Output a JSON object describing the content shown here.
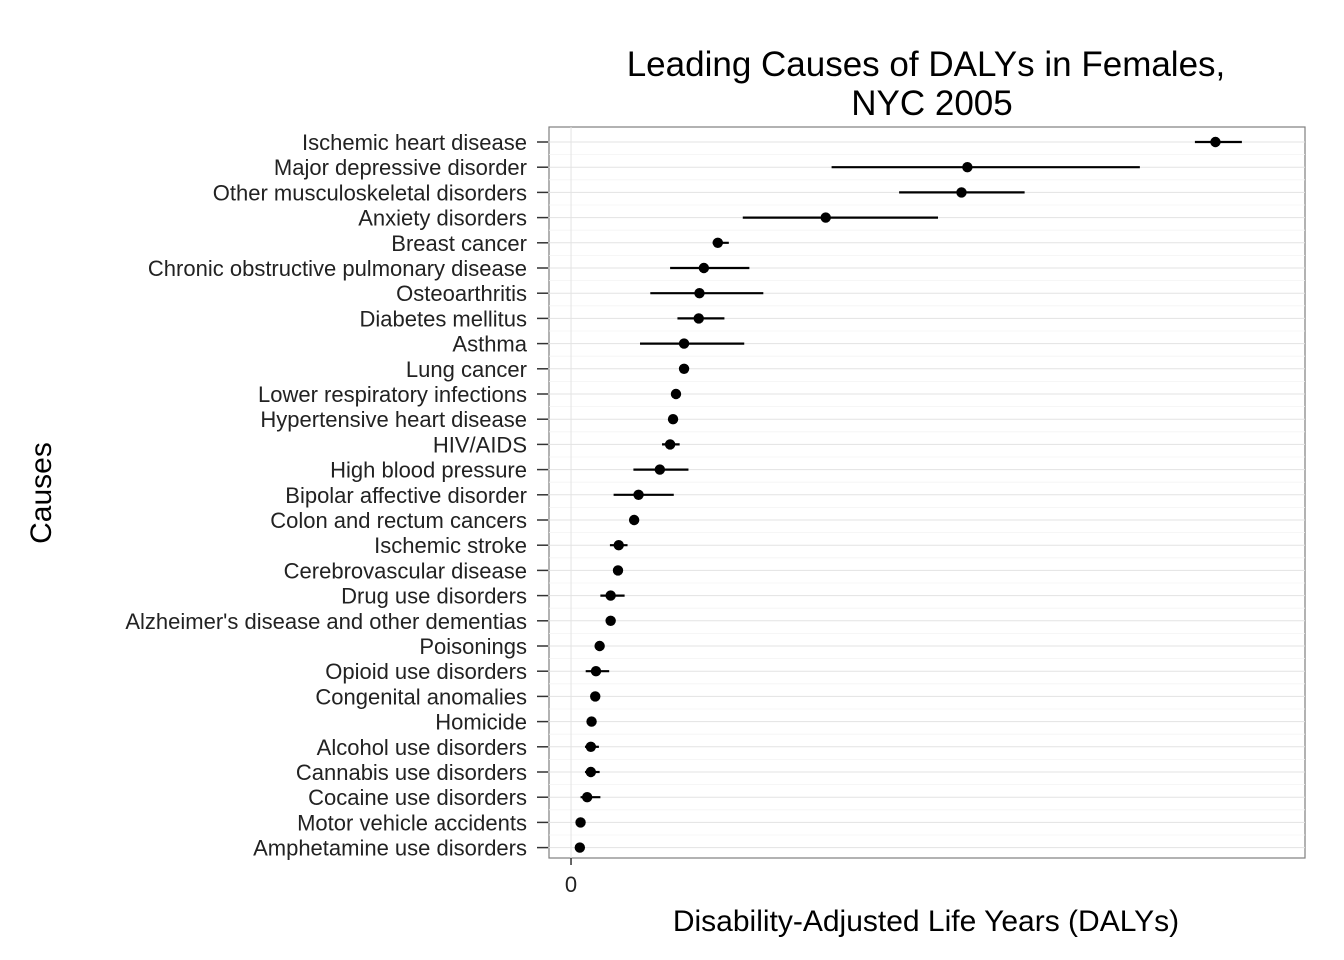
{
  "chart_data": {
    "type": "scatter",
    "title": "Leading Causes of DALYs in Females,",
    "subtitle": "NYC 2005",
    "xlabel": "Disability-Adjusted Life Years (DALYs)",
    "ylabel": "Causes",
    "x_tick_labels": [
      {
        "value": 0,
        "label": "0"
      }
    ],
    "xlim": [
      -30,
      1000
    ],
    "grid": true,
    "categories": [
      "Ischemic heart disease",
      "Major depressive disorder",
      "Other musculoskeletal disorders",
      "Anxiety disorders",
      "Breast cancer",
      "Chronic obstructive pulmonary disease",
      "Osteoarthritis",
      "Diabetes mellitus",
      "Asthma",
      "Lung cancer",
      "Lower respiratory infections",
      "Hypertensive heart disease",
      "HIV/AIDS",
      "High blood pressure",
      "Bipolar affective disorder",
      "Colon and rectum cancers",
      "Ischemic stroke",
      "Cerebrovascular disease",
      "Drug use disorders",
      "Alzheimer's disease and other dementias",
      "Poisonings",
      "Opioid use disorders",
      "Congenital anomalies",
      "Homicide",
      "Alcohol use disorders",
      "Cannabis use disorders",
      "Cocaine use disorders",
      "Motor vehicle accidents",
      "Amphetamine use disorders"
    ],
    "values": [
      878,
      540,
      532,
      347,
      200,
      181,
      175,
      174,
      154,
      154,
      143,
      139,
      135,
      121,
      92,
      86,
      65,
      64,
      54,
      54,
      39,
      34,
      33,
      28,
      27,
      27,
      22,
      13,
      12
    ],
    "lower": [
      850,
      355,
      447,
      234,
      193,
      135,
      108,
      145,
      94,
      154,
      143,
      139,
      124,
      85,
      58,
      86,
      53,
      64,
      40,
      54,
      39,
      20,
      33,
      28,
      19,
      19,
      13,
      13,
      12
    ],
    "upper": [
      914,
      775,
      618,
      500,
      215,
      243,
      262,
      209,
      236,
      154,
      143,
      139,
      148,
      160,
      140,
      86,
      77,
      64,
      73,
      54,
      39,
      52,
      33,
      28,
      38,
      39,
      40,
      13,
      12
    ]
  }
}
